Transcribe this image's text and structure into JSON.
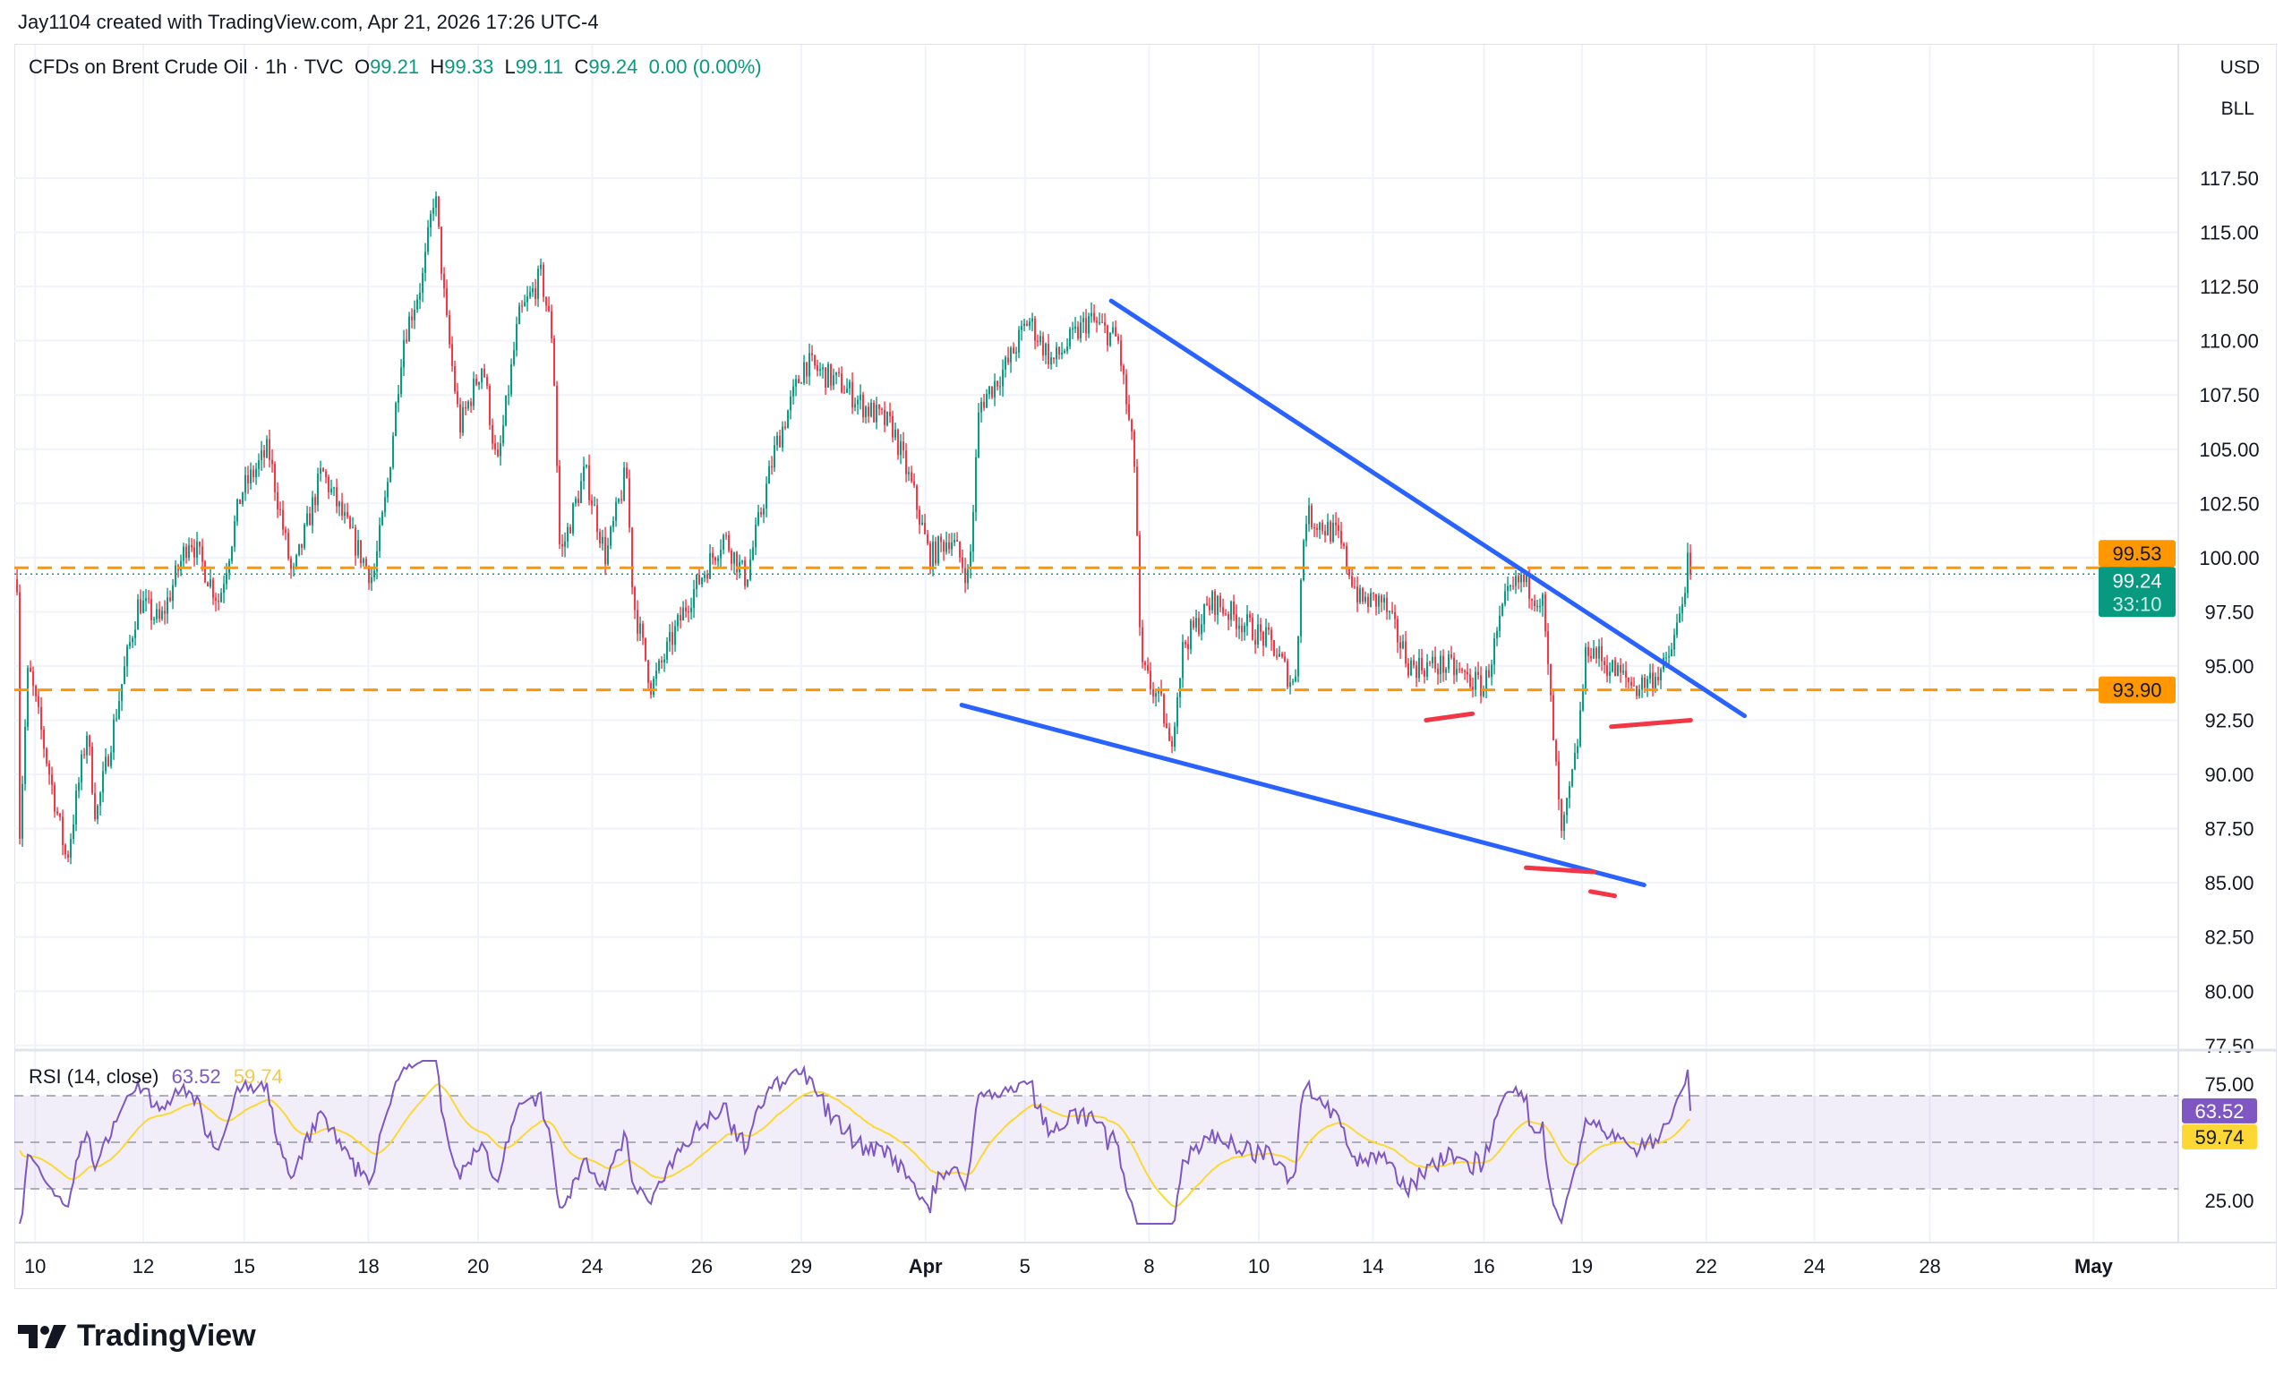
{
  "credit": "Jay1104 created with TradingView.com, Apr 21, 2026 17:26 UTC-4",
  "legend": {
    "symbol": "CFDs on Brent Crude Oil · 1h · TVC",
    "o_label": "O",
    "o": "99.21",
    "h_label": "H",
    "h": "99.33",
    "l_label": "L",
    "l": "99.11",
    "c_label": "C",
    "c": "99.24",
    "change": "0.00 (0.00%)"
  },
  "currency": "USD",
  "unit": "BLL",
  "price_labels": {
    "level_high": "99.53",
    "last": "99.24",
    "countdown": "33:10",
    "level_low": "93.90"
  },
  "rsi": {
    "label": "RSI (14, close)",
    "value": "63.52",
    "ma": "59.74",
    "ticks": [
      "75.00",
      "25.00"
    ]
  },
  "logo": "TradingView",
  "colors": {
    "up": "#089981",
    "down": "#f23645",
    "trendline": "#2962ff",
    "level": "#ff9800",
    "marker": "#f23645",
    "rsi": "#7e57c2",
    "rsi_ma": "#fdd835"
  },
  "chart_data": {
    "type": "candlestick",
    "interval": "1h",
    "y_ticks": [
      "117.50",
      "115.00",
      "112.50",
      "110.00",
      "107.50",
      "105.00",
      "102.50",
      "100.00",
      "97.50",
      "95.00",
      "92.50",
      "90.00",
      "87.50",
      "85.00",
      "82.50",
      "80.00",
      "77.50"
    ],
    "ylim": [
      77.5,
      117.5
    ],
    "x_ticks": [
      {
        "label": "10",
        "date": "03-10 00"
      },
      {
        "label": "12",
        "date": "03-12 00"
      },
      {
        "label": "15",
        "date": "03-15 00"
      },
      {
        "label": "18",
        "date": "03-18 00"
      },
      {
        "label": "20",
        "date": "03-20 00"
      },
      {
        "label": "24",
        "date": "03-24 00"
      },
      {
        "label": "26",
        "date": "03-26 00"
      },
      {
        "label": "29",
        "date": "03-29 00"
      },
      {
        "label": "Apr",
        "date": "04-01 00"
      },
      {
        "label": "5",
        "date": "04-05 00"
      },
      {
        "label": "8",
        "date": "04-08 00"
      },
      {
        "label": "10",
        "date": "04-10 00"
      },
      {
        "label": "14",
        "date": "04-14 00"
      },
      {
        "label": "16",
        "date": "04-16 00"
      },
      {
        "label": "19",
        "date": "04-19 00"
      },
      {
        "label": "22",
        "date": "04-22 00"
      },
      {
        "label": "24",
        "date": "04-24 00"
      },
      {
        "label": "28",
        "date": "04-28 00"
      },
      {
        "label": "May",
        "date": "05-01 00"
      }
    ],
    "price_path": [
      [
        "03-09 16",
        99
      ],
      [
        "03-09 17",
        87
      ],
      [
        "03-09 21",
        95
      ],
      [
        "03-10 14",
        86
      ],
      [
        "03-10 23",
        92
      ],
      [
        "03-11 03",
        88
      ],
      [
        "03-11 16",
        95
      ],
      [
        "03-11 22",
        98
      ],
      [
        "03-12 12",
        97
      ],
      [
        "03-13 09",
        101
      ],
      [
        "03-14 06",
        98
      ],
      [
        "03-14 22",
        103
      ],
      [
        "03-15 14",
        105
      ],
      [
        "03-16 04",
        99
      ],
      [
        "03-16 21",
        104
      ],
      [
        "03-17 14",
        101
      ],
      [
        "03-18 02",
        99
      ],
      [
        "03-18 08",
        103
      ],
      [
        "03-18 15",
        110
      ],
      [
        "03-19 00",
        113
      ],
      [
        "03-19 05",
        117
      ],
      [
        "03-19 10",
        111
      ],
      [
        "03-19 16",
        106
      ],
      [
        "03-20 04",
        109
      ],
      [
        "03-20 16",
        104
      ],
      [
        "03-21 10",
        111
      ],
      [
        "03-22 05",
        113
      ],
      [
        "03-22 15",
        110
      ],
      [
        "03-22 21",
        100
      ],
      [
        "03-23 18",
        104
      ],
      [
        "03-24 06",
        100
      ],
      [
        "03-24 15",
        104
      ],
      [
        "03-24 18",
        98
      ],
      [
        "03-25 02",
        94
      ],
      [
        "03-25 18",
        98
      ],
      [
        "03-26 16",
        101
      ],
      [
        "03-27 08",
        99
      ],
      [
        "03-28 05",
        105
      ],
      [
        "03-29 02",
        109
      ],
      [
        "03-29 23",
        108
      ],
      [
        "03-30 12",
        107
      ],
      [
        "03-31 05",
        106
      ],
      [
        "03-31 17",
        103
      ],
      [
        "04-01 04",
        100
      ],
      [
        "04-02 00",
        101
      ],
      [
        "04-02 18",
        99
      ],
      [
        "04-03 04",
        107
      ],
      [
        "04-04 08",
        109
      ],
      [
        "04-05 02",
        111
      ],
      [
        "04-05 16",
        109
      ],
      [
        "04-06 13",
        111
      ],
      [
        "04-07 06",
        110
      ],
      [
        "04-07 16",
        104
      ],
      [
        "04-07 19",
        95
      ],
      [
        "04-08 06",
        93
      ],
      [
        "04-08 09",
        91
      ],
      [
        "04-08 15",
        96
      ],
      [
        "04-09 04",
        98
      ],
      [
        "04-09 17",
        97
      ],
      [
        "04-10 11",
        96
      ],
      [
        "04-11 06",
        94
      ],
      [
        "04-11 15",
        102
      ],
      [
        "04-12 18",
        101
      ],
      [
        "04-13 13",
        98
      ],
      [
        "04-14 04",
        98
      ],
      [
        "04-14 16",
        95
      ],
      [
        "04-15 08",
        95
      ],
      [
        "04-16 00",
        94
      ],
      [
        "04-16 16",
        98
      ],
      [
        "04-17 03",
        99
      ],
      [
        "04-17 19",
        98
      ],
      [
        "04-18 09",
        87
      ],
      [
        "04-18 20",
        91
      ],
      [
        "04-19 03",
        96
      ],
      [
        "04-19 15",
        95
      ],
      [
        "04-20 08",
        94
      ],
      [
        "04-21 01",
        95
      ],
      [
        "04-21 08",
        97
      ],
      [
        "04-21 14",
        100
      ],
      [
        "04-21 16",
        99.24
      ]
    ],
    "horizontal_levels": [
      99.53,
      93.9
    ],
    "last_price": 99.24,
    "trendlines": [
      {
        "from": [
          "04-07 02",
          111.84
        ],
        "to": [
          "04-22 17",
          92.7
        ]
      },
      {
        "from": [
          "04-02 11",
          93.2
        ],
        "to": [
          "04-20 12",
          84.9
        ]
      }
    ],
    "markers": [
      {
        "from": [
          "04-14 23",
          92.5
        ],
        "to": [
          "04-15 19",
          92.8
        ]
      },
      {
        "from": [
          "04-19 17",
          92.2
        ],
        "to": [
          "04-21 15",
          92.5
        ]
      },
      {
        "from": [
          "04-17 07",
          85.7
        ],
        "to": [
          "04-19 07",
          85.5
        ]
      },
      {
        "from": [
          "04-19 05",
          84.6
        ],
        "to": [
          "04-19 19",
          84.4
        ]
      }
    ],
    "rsi_levels": [
      70,
      50,
      30
    ]
  }
}
